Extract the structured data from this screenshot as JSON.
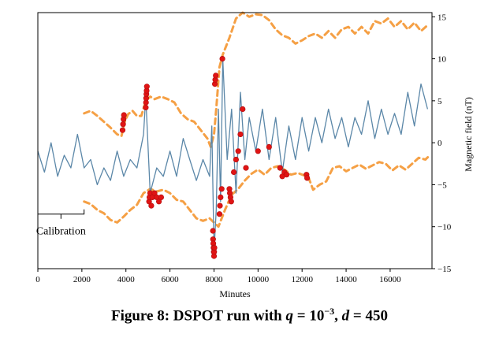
{
  "caption": {
    "prefix": "Figure 8: DSPOT run with ",
    "q_var": "q",
    "eq": " = 10",
    "exp": "−3",
    "sep": ", ",
    "d_var": "d",
    "d_eq": " = 450"
  },
  "chart_data": {
    "type": "line",
    "xlabel": "Minutes",
    "ylabel": "Magnetic field (nT)",
    "xlim": [
      0,
      17900
    ],
    "ylim": [
      -15,
      15.5
    ],
    "x_ticks": [
      0,
      2000,
      4000,
      6000,
      8000,
      10000,
      12000,
      14000,
      16000
    ],
    "y_ticks": [
      -15,
      -10,
      -5,
      0,
      5,
      10,
      15
    ],
    "x_tick_labels": [
      "0",
      "2000",
      "4000",
      "6000",
      "8000",
      "10000",
      "12000",
      "14000",
      "16000"
    ],
    "y_tick_labels": [
      "−15",
      "−10",
      "−5",
      "0",
      "5",
      "10",
      "15"
    ],
    "y_axis_side": "right",
    "grid": false,
    "colors": {
      "signal": "#5b87a8",
      "threshold": "#f5a045",
      "alarm": "#e01414",
      "alarm_edge": "#b01010"
    },
    "annotation": {
      "label": "Calibration",
      "x_start": 0,
      "x_end": 2100,
      "y": -8.5
    },
    "signal": {
      "x": [
        0,
        300,
        600,
        900,
        1200,
        1500,
        1800,
        2100,
        2400,
        2700,
        3000,
        3300,
        3600,
        3900,
        4200,
        4500,
        4800,
        4900,
        5100,
        5400,
        5700,
        6000,
        6300,
        6600,
        6900,
        7200,
        7500,
        7800,
        7900,
        8000,
        8100,
        8200,
        8300,
        8400,
        8600,
        8800,
        9000,
        9200,
        9400,
        9600,
        9900,
        10200,
        10500,
        10800,
        11100,
        11400,
        11700,
        12000,
        12300,
        12600,
        12900,
        13200,
        13500,
        13800,
        14100,
        14400,
        14700,
        15000,
        15300,
        15600,
        15900,
        16200,
        16500,
        16800,
        17100,
        17400,
        17700
      ],
      "y": [
        -1.0,
        -3.5,
        0.0,
        -4.0,
        -1.5,
        -3.0,
        1.0,
        -3.0,
        -2.0,
        -5.0,
        -3.0,
        -4.5,
        -1.0,
        -4.0,
        -2.0,
        -3.0,
        1.0,
        5.5,
        -6.0,
        -3.0,
        -4.0,
        -1.0,
        -4.0,
        0.5,
        -2.0,
        -4.5,
        -2.0,
        -4.0,
        2.0,
        -13.0,
        -8.0,
        4.0,
        -7.0,
        10.0,
        -2.0,
        4.0,
        -6.0,
        6.0,
        -2.0,
        3.0,
        -1.0,
        4.0,
        -2.0,
        3.0,
        -3.5,
        2.0,
        -2.0,
        3.0,
        -1.0,
        3.0,
        0.0,
        4.0,
        0.5,
        3.0,
        -0.5,
        3.0,
        1.0,
        5.0,
        0.5,
        4.0,
        1.0,
        3.5,
        1.0,
        6.0,
        2.0,
        7.0,
        4.0
      ]
    },
    "thresholds": [
      {
        "x": [
          2100,
          2400,
          2700,
          3000,
          3300,
          3600,
          3800,
          3950,
          4100,
          4300,
          4500,
          4700,
          4900,
          5100,
          5300,
          5600,
          5900,
          6200,
          6500,
          6800,
          7100,
          7400,
          7700,
          7850,
          8000,
          8100,
          8250,
          8400,
          8700,
          9000,
          9300,
          9600,
          9900,
          10200,
          10500,
          10800,
          11100,
          11400,
          11700,
          12000,
          12300,
          12600,
          12900,
          13200,
          13500,
          13800,
          14100,
          14400,
          14700,
          15000,
          15300,
          15600,
          15900,
          16200,
          16500,
          16800,
          17100,
          17400,
          17700
        ],
        "y": [
          3.5,
          3.8,
          3.2,
          2.5,
          1.8,
          1.0,
          0.8,
          2.5,
          3.4,
          3.8,
          3.2,
          3.2,
          5.0,
          5.5,
          5.2,
          5.5,
          5.2,
          4.8,
          3.5,
          2.8,
          2.5,
          1.5,
          0.5,
          -0.5,
          1.0,
          4.0,
          9.0,
          10.5,
          12.5,
          14.8,
          15.5,
          15.0,
          15.3,
          15.2,
          14.6,
          13.5,
          12.8,
          12.5,
          11.8,
          12.2,
          12.7,
          13.0,
          12.5,
          13.3,
          12.5,
          13.5,
          13.8,
          13.0,
          13.8,
          13.0,
          14.5,
          14.2,
          14.8,
          13.8,
          14.5,
          13.5,
          14.3,
          13.3,
          14.0
        ]
      },
      {
        "x": [
          2100,
          2400,
          2700,
          3000,
          3300,
          3600,
          3900,
          4200,
          4500,
          4800,
          5100,
          5400,
          5700,
          6000,
          6300,
          6600,
          6900,
          7200,
          7500,
          7800,
          8000,
          8200,
          8500,
          8800,
          9100,
          9400,
          9700,
          10000,
          10300,
          10600,
          10900,
          11200,
          11500,
          11800,
          12100,
          12300,
          12500,
          12800,
          13100,
          13400,
          13700,
          14000,
          14300,
          14600,
          14900,
          15200,
          15500,
          15800,
          16100,
          16400,
          16700,
          17000,
          17300,
          17600,
          17800
        ],
        "y": [
          -7.0,
          -7.3,
          -8.0,
          -8.4,
          -9.2,
          -9.5,
          -8.8,
          -8.0,
          -7.4,
          -6.0,
          -5.5,
          -5.8,
          -5.6,
          -6.0,
          -6.8,
          -7.0,
          -8.0,
          -9.0,
          -9.3,
          -9.0,
          -9.5,
          -10.0,
          -8.0,
          -6.2,
          -5.5,
          -4.5,
          -3.7,
          -3.2,
          -3.8,
          -3.0,
          -2.8,
          -3.2,
          -3.8,
          -3.6,
          -3.9,
          -4.2,
          -5.6,
          -5.0,
          -4.6,
          -3.0,
          -2.8,
          -3.4,
          -3.0,
          -2.6,
          -3.1,
          -2.7,
          -2.3,
          -2.5,
          -3.3,
          -2.7,
          -3.2,
          -2.5,
          -1.8,
          -2.0,
          -1.5
        ]
      }
    ],
    "alarms": {
      "x": [
        3850,
        3870,
        3890,
        3910,
        4900,
        4910,
        4920,
        4930,
        4940,
        4950,
        5050,
        5070,
        5100,
        5150,
        5200,
        5300,
        5400,
        5500,
        5600,
        7950,
        7960,
        7970,
        7980,
        7990,
        8000,
        8010,
        8020,
        8040,
        8060,
        8080,
        8250,
        8270,
        8300,
        8350,
        8380,
        8700,
        8720,
        8750,
        8780,
        8900,
        9000,
        9100,
        9200,
        9300,
        9450,
        10000,
        10500,
        11000,
        11100,
        11200,
        11300,
        12200,
        12230
      ],
      "y": [
        1.5,
        2.2,
        2.8,
        3.3,
        4.2,
        4.8,
        5.3,
        5.8,
        6.2,
        6.7,
        -7.0,
        -6.5,
        -6.0,
        -7.5,
        -6.5,
        -6.0,
        -6.5,
        -7.0,
        -6.5,
        -10.5,
        -11.5,
        -12.0,
        -12.5,
        -13.0,
        -13.5,
        -13.0,
        -12.5,
        7.0,
        7.5,
        8.0,
        -8.5,
        -7.5,
        -6.5,
        -5.5,
        10.0,
        -5.5,
        -6.0,
        -6.5,
        -7.0,
        -3.5,
        -2.0,
        -1.0,
        1.0,
        4.0,
        -3.0,
        -1.0,
        -0.5,
        -3.0,
        -4.0,
        -3.5,
        -3.8,
        -3.8,
        -4.2
      ]
    }
  }
}
